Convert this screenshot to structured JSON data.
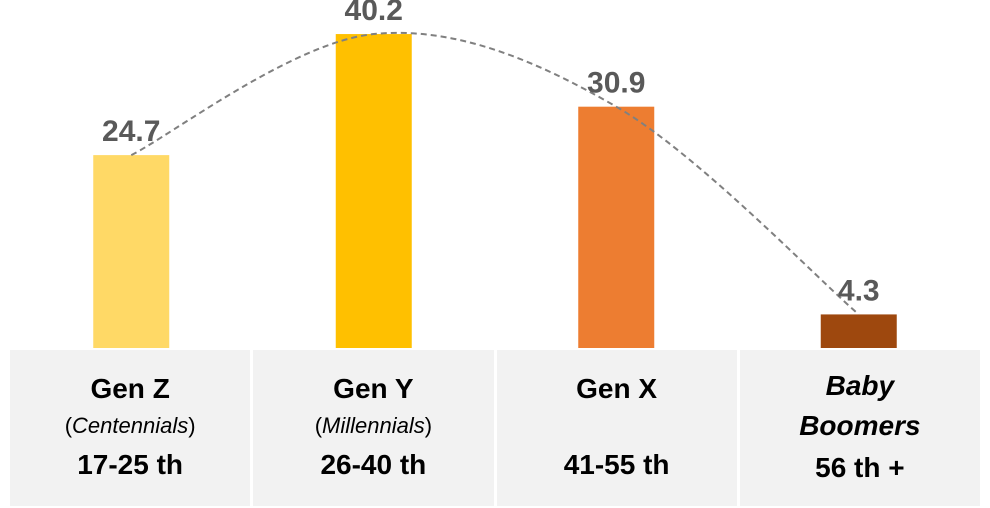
{
  "chart_data": {
    "type": "bar",
    "categories": [
      "Gen Z",
      "Gen Y",
      "Gen X",
      "Baby Boomers"
    ],
    "values": [
      24.7,
      40.2,
      30.9,
      4.3
    ],
    "data_labels": [
      "24.7",
      "40.2",
      "30.9",
      "4.3"
    ],
    "colors": [
      "#ffd966",
      "#ffc000",
      "#ed7d31",
      "#9e480e"
    ],
    "ylim": [
      0,
      42
    ],
    "trendline": "dashed curve",
    "trendline_color": "#808080",
    "grid": false,
    "legend": "none"
  },
  "table": {
    "columns": [
      {
        "name": "Gen Z",
        "name_italic": false,
        "sub_open": "(",
        "sub_inner": "Centennials",
        "sub_close": ")",
        "age": "17-25 th"
      },
      {
        "name": "Gen Y",
        "name_italic": false,
        "sub_open": "(",
        "sub_inner": "Millennials",
        "sub_close": ")",
        "age": "26-40 th"
      },
      {
        "name": "Gen X",
        "name_italic": false,
        "sub_open": "",
        "sub_inner": "",
        "sub_close": "",
        "age": "41-55 th"
      },
      {
        "name": "Baby",
        "name_italic": true,
        "sub_open": "",
        "sub_inner": "Boomers",
        "sub_close": "",
        "sub_bold_italic": true,
        "age": "56 th +"
      }
    ]
  }
}
